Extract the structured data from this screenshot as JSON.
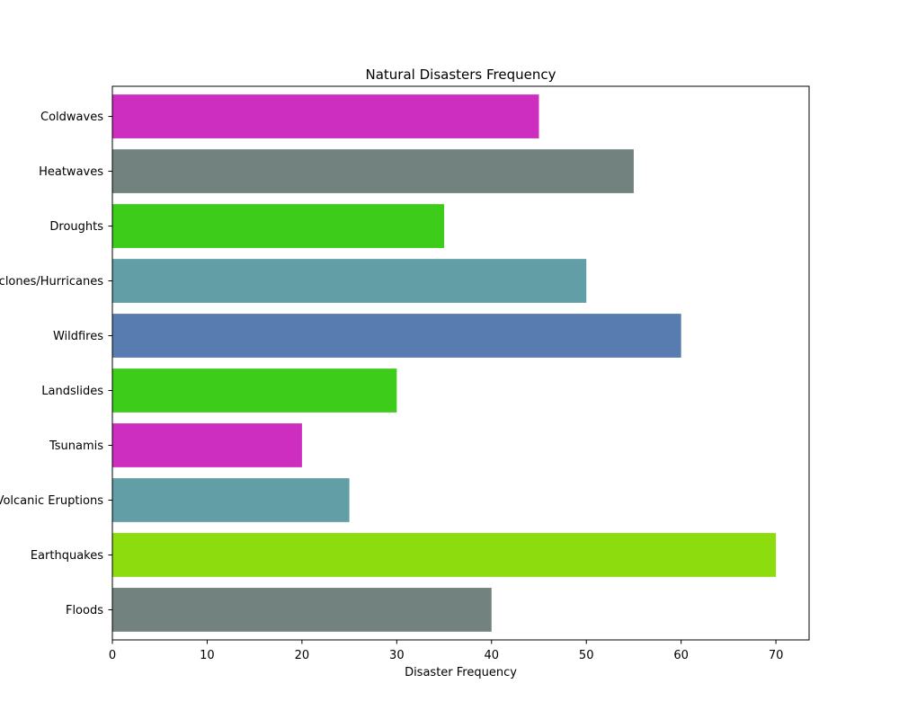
{
  "chart_data": {
    "type": "bar",
    "orientation": "horizontal",
    "title": "Natural Disasters Frequency",
    "xlabel": "Disaster Frequency",
    "ylabel": "",
    "xlim": [
      0,
      73.5
    ],
    "x_ticks": [
      0,
      10,
      20,
      30,
      40,
      50,
      60,
      70
    ],
    "grid": false,
    "categories": [
      "Floods",
      "Earthquakes",
      "Volcanic Eruptions",
      "Tsunamis",
      "Landslides",
      "Wildfires",
      "Cyclones/Hurricanes",
      "Droughts",
      "Heatwaves",
      "Coldwaves"
    ],
    "values": [
      40,
      70,
      25,
      20,
      30,
      60,
      50,
      35,
      55,
      45
    ],
    "colors": [
      "#72837f",
      "#8ddd0e",
      "#619ea6",
      "#cd2ebf",
      "#3ccc19",
      "#587bb0",
      "#619ea6",
      "#3ccc19",
      "#72837f",
      "#cd2ebf"
    ]
  }
}
